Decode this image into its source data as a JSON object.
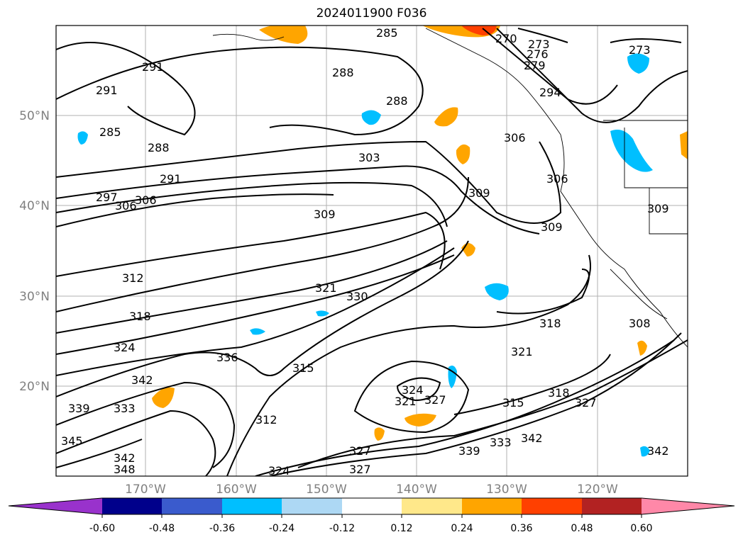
{
  "title": "2024011900 F036",
  "map": {
    "lat_ticks": [
      "50°N",
      "40°N",
      "30°N",
      "20°N"
    ],
    "lon_ticks": [
      "170°W",
      "160°W",
      "150°W",
      "140°W",
      "130°W",
      "120°W"
    ],
    "contour_labels": [
      "285",
      "270",
      "273",
      "276",
      "279",
      "273",
      "291",
      "291",
      "288",
      "288",
      "288",
      "285",
      "294",
      "306",
      "303",
      "309",
      "306",
      "309",
      "309",
      "309",
      "306",
      "297",
      "291",
      "306",
      "312",
      "321",
      "330",
      "318",
      "318",
      "324",
      "321",
      "336",
      "315",
      "342",
      "324",
      "321",
      "339",
      "333",
      "312",
      "315",
      "318",
      "327",
      "345",
      "342",
      "342",
      "327",
      "339",
      "333",
      "327",
      "342",
      "324",
      "348",
      "327",
      "308"
    ],
    "fill_colors": {
      "light_blue": "#add8f4",
      "blue": "#00bfff",
      "dark_blue": "#1e56c8",
      "yellow": "#ffe88a",
      "orange": "#ffa500",
      "red_orange": "#ff4000"
    }
  },
  "colorbar": {
    "colors": [
      "#9932cc",
      "#00008b",
      "#3a5bcd",
      "#00bfff",
      "#add8f4",
      "#ffffff",
      "#ffe88a",
      "#ffa500",
      "#ff4000",
      "#b22222",
      "#ff88a8"
    ],
    "ticks": [
      "-0.60",
      "-0.48",
      "-0.36",
      "-0.24",
      "-0.12",
      "0.12",
      "0.24",
      "0.36",
      "0.48",
      "0.60"
    ]
  }
}
